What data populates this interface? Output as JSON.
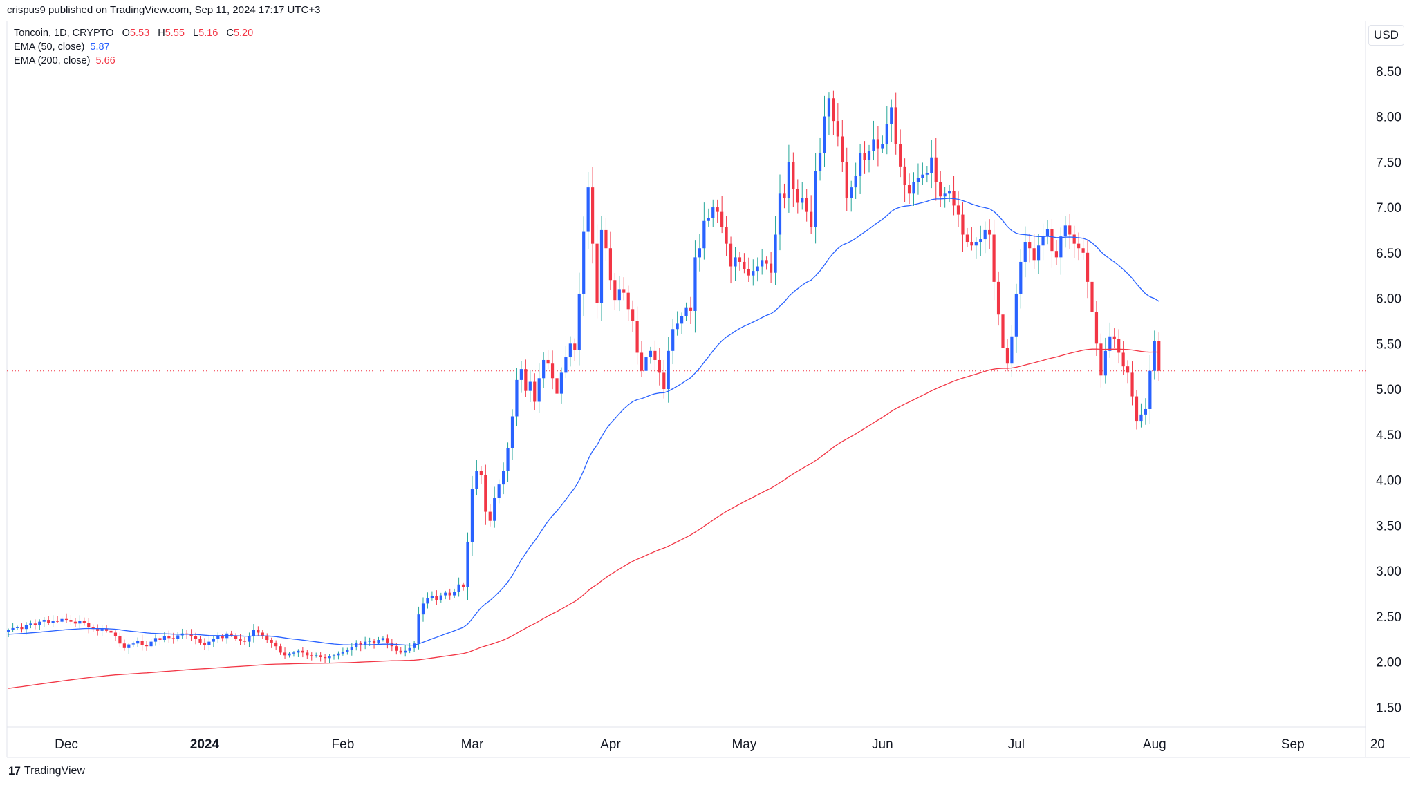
{
  "header": {
    "publisher_text": "crispus9 published on TradingView.com, Sep 11, 2024 17:17 UTC+3"
  },
  "legend": {
    "symbol": "Toncoin, 1D, CRYPTO",
    "o_label": "O",
    "o_value": "5.53",
    "h_label": "H",
    "h_value": "5.55",
    "l_label": "L",
    "l_value": "5.16",
    "c_label": "C",
    "c_value": "5.20",
    "ema50_label": "EMA (50, close)",
    "ema50_value": "5.87",
    "ema200_label": "EMA (200, close)",
    "ema200_value": "5.66"
  },
  "currency_button": "USD",
  "footer": {
    "brand_mark": "17",
    "brand_name": "TradingView"
  },
  "colors": {
    "up": "#2962ff",
    "down": "#f23645",
    "wick_up": "#26a69a",
    "ema50": "#2962ff",
    "ema200": "#f23645",
    "grid": "#f0f3fa"
  },
  "chart_data": {
    "type": "candlestick",
    "title": "Toncoin, 1D, CRYPTO",
    "ylabel": "USD",
    "ylim": [
      1.2,
      8.9
    ],
    "y_ticks": [
      "1.50",
      "2.00",
      "2.50",
      "3.00",
      "3.50",
      "4.00",
      "4.50",
      "5.00",
      "5.50",
      "6.00",
      "6.50",
      "7.00",
      "7.50",
      "8.00",
      "8.50"
    ],
    "x_ticks": [
      {
        "label": "Dec",
        "day": 0
      },
      {
        "label": "2024",
        "day": 31,
        "bold": true
      },
      {
        "label": "Feb",
        "day": 62
      },
      {
        "label": "Mar",
        "day": 91
      },
      {
        "label": "Apr",
        "day": 122
      },
      {
        "label": "May",
        "day": 152
      },
      {
        "label": "Jun",
        "day": 183
      },
      {
        "label": "Jul",
        "day": 213
      },
      {
        "label": "Aug",
        "day": 244
      },
      {
        "label": "Sep",
        "day": 275
      },
      {
        "label": "20",
        "day": 294
      }
    ],
    "start_day": -13,
    "last_price_line": 5.2,
    "closes": [
      2.35,
      2.37,
      2.38,
      2.36,
      2.4,
      2.42,
      2.4,
      2.44,
      2.46,
      2.43,
      2.45,
      2.44,
      2.47,
      2.46,
      2.44,
      2.42,
      2.45,
      2.43,
      2.38,
      2.36,
      2.34,
      2.36,
      2.34,
      2.32,
      2.28,
      2.2,
      2.15,
      2.19,
      2.2,
      2.23,
      2.18,
      2.17,
      2.22,
      2.26,
      2.24,
      2.28,
      2.26,
      2.25,
      2.29,
      2.31,
      2.3,
      2.28,
      2.25,
      2.21,
      2.18,
      2.22,
      2.25,
      2.28,
      2.26,
      2.31,
      2.29,
      2.25,
      2.23,
      2.22,
      2.28,
      2.35,
      2.32,
      2.28,
      2.24,
      2.21,
      2.17,
      2.1,
      2.07,
      2.09,
      2.1,
      2.12,
      2.1,
      2.07,
      2.06,
      2.07,
      2.05,
      2.04,
      2.06,
      2.07,
      2.09,
      2.11,
      2.13,
      2.16,
      2.21,
      2.18,
      2.22,
      2.23,
      2.2,
      2.24,
      2.26,
      2.21,
      2.17,
      2.12,
      2.1,
      2.12,
      2.15,
      2.2,
      2.52,
      2.64,
      2.7,
      2.72,
      2.68,
      2.73,
      2.76,
      2.73,
      2.77,
      2.85,
      2.82,
      3.32,
      3.9,
      4.1,
      4.05,
      3.65,
      3.55,
      3.8,
      3.95,
      4.1,
      4.35,
      4.7,
      5.1,
      5.22,
      4.98,
      5.08,
      4.86,
      5.12,
      5.32,
      5.28,
      5.12,
      4.95,
      5.18,
      5.35,
      5.5,
      5.43,
      6.05,
      6.73,
      7.22,
      6.6,
      5.95,
      6.75,
      6.55,
      6.2,
      5.98,
      6.1,
      6.06,
      5.88,
      5.75,
      5.4,
      5.2,
      5.35,
      5.42,
      5.32,
      5.18,
      5.0,
      5.42,
      5.66,
      5.72,
      5.8,
      5.9,
      5.86,
      6.45,
      6.55,
      6.85,
      6.88,
      7.0,
      6.95,
      6.78,
      6.6,
      6.35,
      6.45,
      6.4,
      6.32,
      6.25,
      6.3,
      6.35,
      6.42,
      6.38,
      6.28,
      6.7,
      7.15,
      7.1,
      7.5,
      7.2,
      7.05,
      7.1,
      6.95,
      6.78,
      7.4,
      7.6,
      8.0,
      8.2,
      7.95,
      7.78,
      7.5,
      7.1,
      7.22,
      7.35,
      7.6,
      7.52,
      7.62,
      7.75,
      7.65,
      7.7,
      7.92,
      8.1,
      7.7,
      7.45,
      7.25,
      7.15,
      7.28,
      7.32,
      7.36,
      7.38,
      7.55,
      7.28,
      7.12,
      7.15,
      7.18,
      7.02,
      6.92,
      6.7,
      6.62,
      6.58,
      6.62,
      6.65,
      6.75,
      6.7,
      6.18,
      5.82,
      5.45,
      5.28,
      5.58,
      6.05,
      6.4,
      6.62,
      6.55,
      6.42,
      6.58,
      6.68,
      6.76,
      6.52,
      6.45,
      6.68,
      6.8,
      6.7,
      6.6,
      6.55,
      6.5,
      6.18,
      5.85,
      5.5,
      5.15,
      5.42,
      5.58,
      5.55,
      5.4,
      5.25,
      5.18,
      4.92,
      4.65,
      4.72,
      4.78,
      5.2,
      5.53,
      5.2
    ]
  }
}
